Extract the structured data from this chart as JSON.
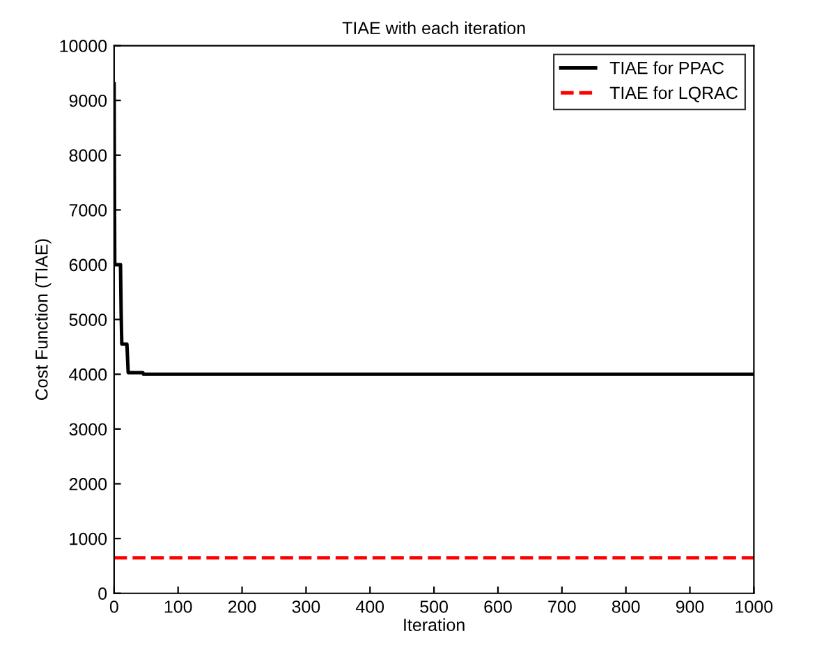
{
  "chart_data": {
    "type": "line",
    "title": "TIAE with each iteration",
    "xlabel": "Iteration",
    "ylabel": "Cost Function (TIAE)",
    "series": [
      {
        "name": "TIAE for PPAC",
        "color": "#000000",
        "line_style": "solid",
        "x": [
          0,
          1,
          10,
          11,
          12,
          20,
          22,
          45,
          46,
          1000
        ],
        "values": [
          9300,
          6000,
          6000,
          5100,
          4550,
          4550,
          4030,
          4030,
          4000,
          4000
        ]
      },
      {
        "name": "TIAE for LQRAC",
        "color": "#ff0000",
        "line_style": "dashed",
        "x": [
          0,
          1000
        ],
        "values": [
          650,
          650
        ]
      }
    ],
    "xlim": [
      0,
      1000
    ],
    "xticks": [
      0,
      100,
      200,
      300,
      400,
      500,
      600,
      700,
      800,
      900,
      1000
    ],
    "ylim": [
      0,
      10000
    ],
    "yticks": [
      0,
      1000,
      2000,
      3000,
      4000,
      5000,
      6000,
      7000,
      8000,
      9000,
      10000
    ],
    "grid": false,
    "legend": "top right"
  }
}
